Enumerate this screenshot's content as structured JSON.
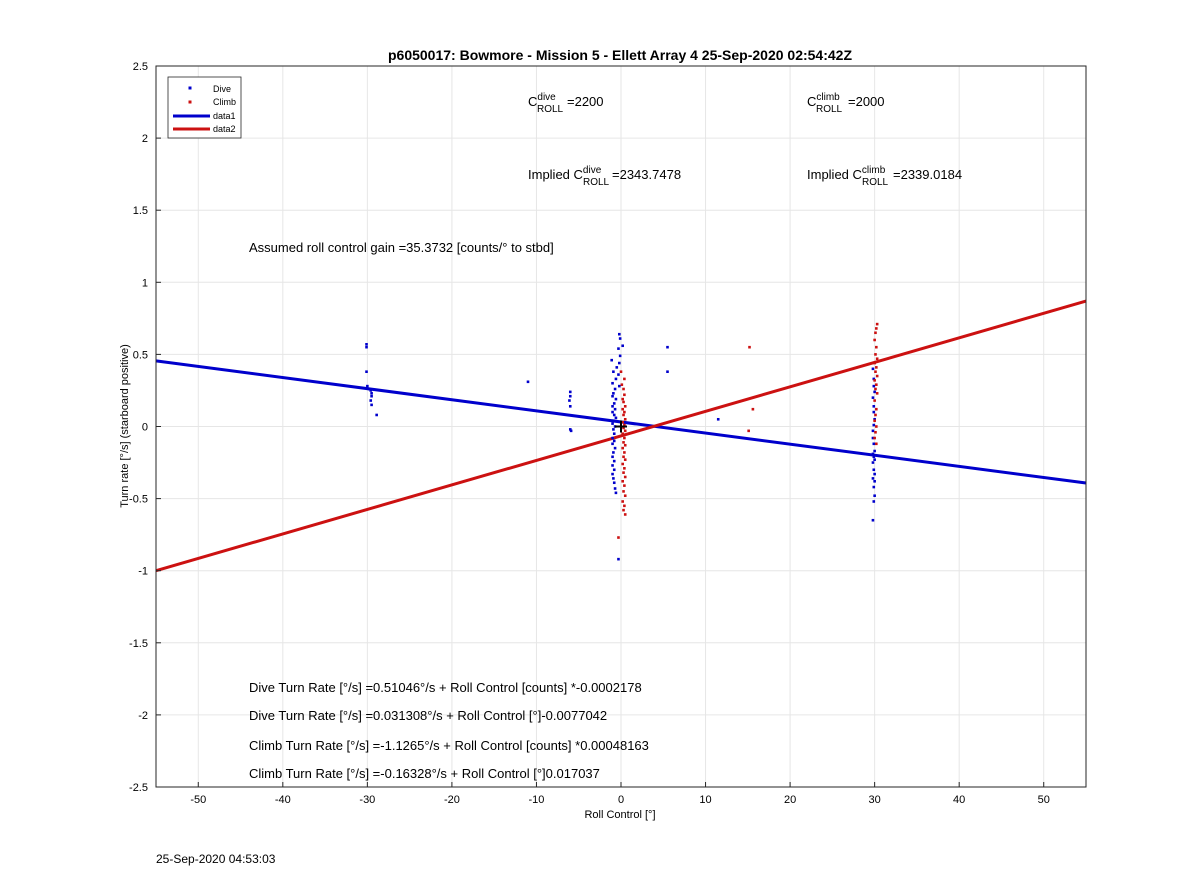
{
  "chart_data": {
    "type": "scatter",
    "title": "p6050017: Bowmore - Mission 5 - Ellett Array 4 25-Sep-2020 02:54:42Z",
    "xlabel": "Roll Control [°]",
    "ylabel": "Turn rate [°/s] (starboard positive)",
    "xlim": [
      -55,
      55
    ],
    "ylim": [
      -2.5,
      2.5
    ],
    "xticks": [
      -50,
      -40,
      -30,
      -20,
      -10,
      0,
      10,
      20,
      30,
      40,
      50
    ],
    "yticks": [
      -2.5,
      -2,
      -1.5,
      -1,
      -0.5,
      0,
      0.5,
      1,
      1.5,
      2,
      2.5
    ],
    "grid": true,
    "legend_position": "top-left",
    "colors": {
      "dive": "#0000cc",
      "climb": "#cc1111",
      "grid": "#e6e6e6",
      "axis": "#262626"
    },
    "series": [
      {
        "name": "Dive",
        "kind": "points",
        "points": [
          [
            -30.1,
            0.57
          ],
          [
            -30.1,
            0.55
          ],
          [
            -30.1,
            0.38
          ],
          [
            -30.0,
            0.28
          ],
          [
            -29.8,
            0.26
          ],
          [
            -29.6,
            0.25
          ],
          [
            -29.5,
            0.23
          ],
          [
            -29.5,
            0.21
          ],
          [
            -29.6,
            0.18
          ],
          [
            -29.5,
            0.15
          ],
          [
            -28.9,
            0.08
          ],
          [
            -11.0,
            0.31
          ],
          [
            -6.0,
            0.24
          ],
          [
            -6.0,
            0.21
          ],
          [
            -6.1,
            0.18
          ],
          [
            -6.0,
            0.14
          ],
          [
            -6.0,
            -0.02
          ],
          [
            -5.9,
            -0.03
          ],
          [
            -0.2,
            0.64
          ],
          [
            -0.1,
            0.61
          ],
          [
            0.2,
            0.56
          ],
          [
            -0.3,
            0.54
          ],
          [
            -0.1,
            0.49
          ],
          [
            -1.1,
            0.46
          ],
          [
            -0.2,
            0.44
          ],
          [
            -0.5,
            0.41
          ],
          [
            -0.9,
            0.38
          ],
          [
            -0.3,
            0.36
          ],
          [
            -0.6,
            0.33
          ],
          [
            -1.0,
            0.3
          ],
          [
            -0.2,
            0.28
          ],
          [
            -0.7,
            0.26
          ],
          [
            -0.9,
            0.23
          ],
          [
            -1.0,
            0.21
          ],
          [
            -0.6,
            0.19
          ],
          [
            -0.8,
            0.16
          ],
          [
            -1.0,
            0.14
          ],
          [
            -0.7,
            0.12
          ],
          [
            -1.0,
            0.1
          ],
          [
            -0.8,
            0.08
          ],
          [
            -0.6,
            0.06
          ],
          [
            -0.9,
            0.04
          ],
          [
            -1.0,
            0.02
          ],
          [
            -0.7,
            0.0
          ],
          [
            -0.9,
            -0.02
          ],
          [
            -0.8,
            -0.05
          ],
          [
            -1.0,
            -0.08
          ],
          [
            -0.8,
            -0.1
          ],
          [
            -1.0,
            -0.12
          ],
          [
            -0.7,
            -0.15
          ],
          [
            -0.9,
            -0.18
          ],
          [
            -1.0,
            -0.21
          ],
          [
            -0.8,
            -0.24
          ],
          [
            -1.0,
            -0.27
          ],
          [
            -0.8,
            -0.3
          ],
          [
            -1.0,
            -0.33
          ],
          [
            -0.9,
            -0.36
          ],
          [
            -0.8,
            -0.39
          ],
          [
            -0.7,
            -0.43
          ],
          [
            -0.6,
            -0.46
          ],
          [
            -0.3,
            -0.92
          ],
          [
            5.5,
            0.55
          ],
          [
            5.5,
            0.38
          ],
          [
            11.5,
            0.05
          ],
          [
            29.8,
            0.4
          ],
          [
            29.9,
            0.33
          ],
          [
            29.9,
            0.28
          ],
          [
            30.0,
            0.24
          ],
          [
            29.8,
            0.2
          ],
          [
            29.9,
            0.14
          ],
          [
            29.9,
            0.1
          ],
          [
            30.0,
            0.05
          ],
          [
            29.9,
            0.01
          ],
          [
            29.8,
            -0.03
          ],
          [
            29.8,
            -0.08
          ],
          [
            29.9,
            -0.12
          ],
          [
            30.0,
            -0.17
          ],
          [
            29.8,
            -0.19
          ],
          [
            29.9,
            -0.21
          ],
          [
            30.0,
            -0.23
          ],
          [
            29.8,
            -0.25
          ],
          [
            29.9,
            -0.3
          ],
          [
            30.0,
            -0.33
          ],
          [
            29.8,
            -0.36
          ],
          [
            30.0,
            -0.38
          ],
          [
            29.9,
            -0.42
          ],
          [
            30.0,
            -0.48
          ],
          [
            29.9,
            -0.52
          ],
          [
            29.8,
            -0.65
          ]
        ]
      },
      {
        "name": "Climb",
        "kind": "points",
        "points": [
          [
            0.0,
            0.38
          ],
          [
            0.4,
            0.33
          ],
          [
            0.1,
            0.29
          ],
          [
            0.3,
            0.26
          ],
          [
            0.4,
            0.22
          ],
          [
            0.2,
            0.19
          ],
          [
            0.3,
            0.17
          ],
          [
            0.5,
            0.14
          ],
          [
            0.2,
            0.12
          ],
          [
            0.4,
            0.1
          ],
          [
            0.3,
            0.08
          ],
          [
            0.5,
            0.05
          ],
          [
            0.2,
            0.03
          ],
          [
            0.4,
            0.01
          ],
          [
            0.3,
            -0.01
          ],
          [
            0.5,
            -0.03
          ],
          [
            0.2,
            -0.05
          ],
          [
            0.4,
            -0.08
          ],
          [
            0.3,
            -0.11
          ],
          [
            0.5,
            -0.13
          ],
          [
            0.2,
            -0.15
          ],
          [
            0.4,
            -0.18
          ],
          [
            0.3,
            -0.21
          ],
          [
            0.5,
            -0.23
          ],
          [
            0.2,
            -0.26
          ],
          [
            0.4,
            -0.29
          ],
          [
            0.3,
            -0.32
          ],
          [
            0.5,
            -0.35
          ],
          [
            0.2,
            -0.38
          ],
          [
            0.4,
            -0.41
          ],
          [
            0.3,
            -0.45
          ],
          [
            0.5,
            -0.48
          ],
          [
            0.2,
            -0.52
          ],
          [
            0.4,
            -0.55
          ],
          [
            0.3,
            -0.58
          ],
          [
            0.5,
            -0.61
          ],
          [
            -0.3,
            -0.77
          ],
          [
            15.2,
            0.55
          ],
          [
            15.6,
            0.12
          ],
          [
            15.1,
            -0.03
          ],
          [
            30.3,
            0.71
          ],
          [
            30.2,
            0.68
          ],
          [
            30.1,
            0.65
          ],
          [
            30.0,
            0.6
          ],
          [
            30.2,
            0.55
          ],
          [
            30.1,
            0.5
          ],
          [
            30.3,
            0.47
          ],
          [
            30.0,
            0.44
          ],
          [
            30.2,
            0.41
          ],
          [
            30.1,
            0.38
          ],
          [
            30.3,
            0.35
          ],
          [
            30.0,
            0.32
          ],
          [
            30.2,
            0.29
          ],
          [
            30.1,
            0.26
          ],
          [
            30.3,
            0.23
          ],
          [
            30.0,
            0.18
          ],
          [
            30.2,
            0.12
          ],
          [
            30.1,
            0.08
          ],
          [
            30.0,
            0.04
          ],
          [
            30.2,
            0.0
          ],
          [
            30.1,
            -0.04
          ],
          [
            30.0,
            -0.08
          ],
          [
            30.2,
            -0.12
          ]
        ]
      },
      {
        "name": "data1",
        "kind": "line",
        "x": [
          -55,
          55
        ],
        "y": [
          0.455,
          -0.392
        ]
      },
      {
        "name": "data2",
        "kind": "line",
        "x": [
          -55,
          55
        ],
        "y": [
          -1.0,
          0.87
        ]
      }
    ],
    "marker": {
      "x": 0,
      "y": 0,
      "symbol": "+"
    },
    "annotations": {
      "cdive_prefix": "C",
      "cdive_sup": "dive",
      "cdive_sub": "ROLL",
      "cdive_value": "=2200",
      "cclimb_prefix": "C",
      "cclimb_sup": "climb",
      "cclimb_sub": "ROLL",
      "cclimb_value": "=2000",
      "implied_dive_prefix": "Implied C",
      "implied_dive_sup": "dive",
      "implied_dive_sub": "ROLL",
      "implied_dive_value": "=2343.7478",
      "implied_climb_prefix": "Implied C",
      "implied_climb_sup": "climb",
      "implied_climb_sub": "ROLL",
      "implied_climb_value": "=2339.0184",
      "gain": "Assumed roll control gain =35.3732 [counts/° to stbd]",
      "eq1": "Dive Turn Rate [°/s] =0.51046°/s + Roll Control [counts] *-0.0002178",
      "eq2": "Dive Turn Rate [°/s] =0.031308°/s + Roll Control [°]-0.0077042",
      "eq3": "Climb Turn Rate [°/s] =-1.1265°/s + Roll Control [counts] *0.00048163",
      "eq4": "Climb Turn Rate [°/s] =-0.16328°/s + Roll Control [°]0.017037"
    }
  },
  "footer": {
    "timestamp": "25-Sep-2020 04:53:03"
  }
}
